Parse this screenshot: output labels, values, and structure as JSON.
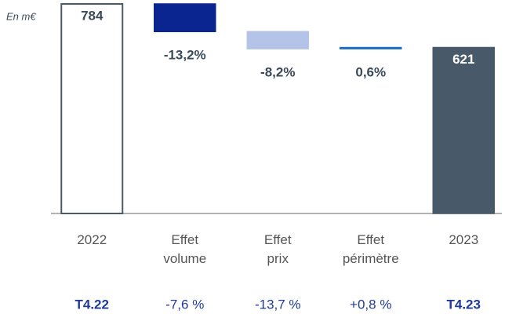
{
  "chart_data": {
    "type": "waterfall",
    "unit_label": "En m€",
    "categories": [
      [
        "2022"
      ],
      [
        "Effet",
        "volume"
      ],
      [
        "Effet",
        "prix"
      ],
      [
        "Effet",
        "périmètre"
      ],
      [
        "2023"
      ]
    ],
    "measure": [
      "total",
      "relative",
      "relative",
      "relative",
      "total"
    ],
    "values": [
      784,
      -13.2,
      -8.2,
      0.6,
      621
    ],
    "value_labels": [
      "784",
      "-13,2%",
      "-8,2%",
      "0,6%",
      "621"
    ],
    "colors": [
      "#ffffff",
      "#0a2590",
      "#b4c4e8",
      "#1f6fc0",
      "#48596a"
    ],
    "quarter_labels": [
      "T4.22",
      "-7,6 %",
      "-13,7 %",
      "+0,8 %",
      "T4.23"
    ]
  }
}
